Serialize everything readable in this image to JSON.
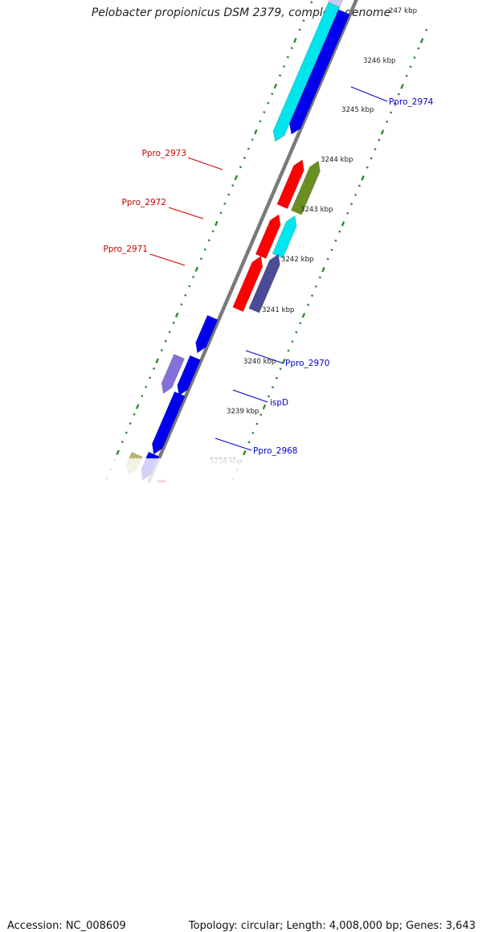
{
  "title": "Pelobacter propionicus DSM 2379, complete genome",
  "footer": {
    "accession": "Accession: NC_008609",
    "summary": "Topology: circular; Length: 4,008,000 bp; Genes: 3,643"
  },
  "colors": {
    "backbone": "#7a7a7a",
    "ticks": "#2e8b2e",
    "red_label": "#cc0000",
    "blue_label": "#0000cc",
    "tick_label": "#222222"
  },
  "scale_labels": [
    "247 kbp",
    "3246 kbp",
    "3245 kbp",
    "3244 kbp",
    "3243 kbp",
    "3242 kbp",
    "3241 kbp",
    "3240 kbp",
    "3239 kbp",
    "3238 kbp"
  ],
  "features": [
    {
      "name": "Ppro_2974",
      "color": "#0000cc",
      "strand": "outer-right"
    },
    {
      "name": "Ppro_2973",
      "color": "#cc0000",
      "strand": "left"
    },
    {
      "name": "Ppro_2972",
      "color": "#cc0000",
      "strand": "left"
    },
    {
      "name": "Ppro_2971",
      "color": "#cc0000",
      "strand": "left"
    },
    {
      "name": "Ppro_2970",
      "color": "#0000cc",
      "strand": "right"
    },
    {
      "name": "ispD",
      "color": "#0000cc",
      "strand": "right"
    },
    {
      "name": "Ppro_2968",
      "color": "#0000cc",
      "strand": "right"
    }
  ],
  "gene_colors": {
    "blue": "#0000ee",
    "cyan": "#00e5ee",
    "red": "#ff0000",
    "olive": "#6b8e23",
    "slate": "#4b4b96",
    "lavender": "#8470d8",
    "pale_lavender": "#c8c8f0",
    "khaki": "#bdb76b"
  }
}
